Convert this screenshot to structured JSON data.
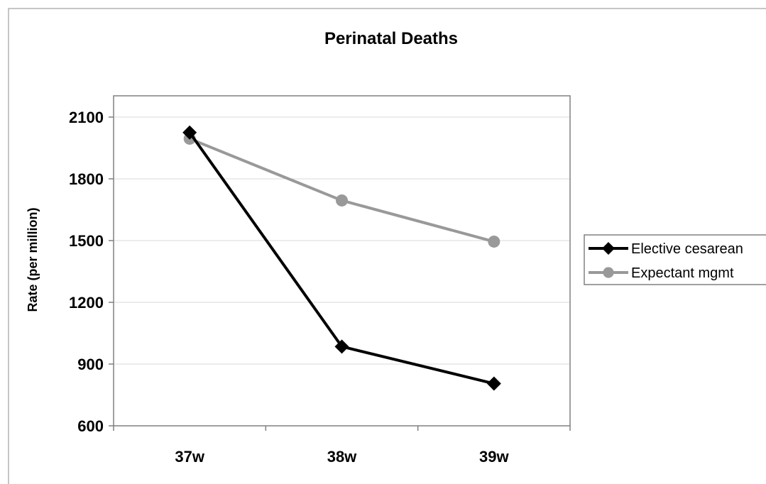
{
  "chart_data": {
    "type": "line",
    "title": "Perinatal Deaths",
    "xlabel": "",
    "ylabel": "Rate (per million)",
    "categories": [
      "37w",
      "38w",
      "39w"
    ],
    "ylim": [
      600,
      2100
    ],
    "yticks": [
      600,
      900,
      1200,
      1500,
      1800,
      2100
    ],
    "grid": true,
    "legend_position": "right",
    "series": [
      {
        "name": "Elective cesarean",
        "values": [
          2025,
          985,
          805
        ],
        "color": "#000000",
        "marker": "diamond"
      },
      {
        "name": "Expectant mgmt",
        "values": [
          1995,
          1695,
          1495
        ],
        "color": "#999999",
        "marker": "circle"
      }
    ]
  }
}
